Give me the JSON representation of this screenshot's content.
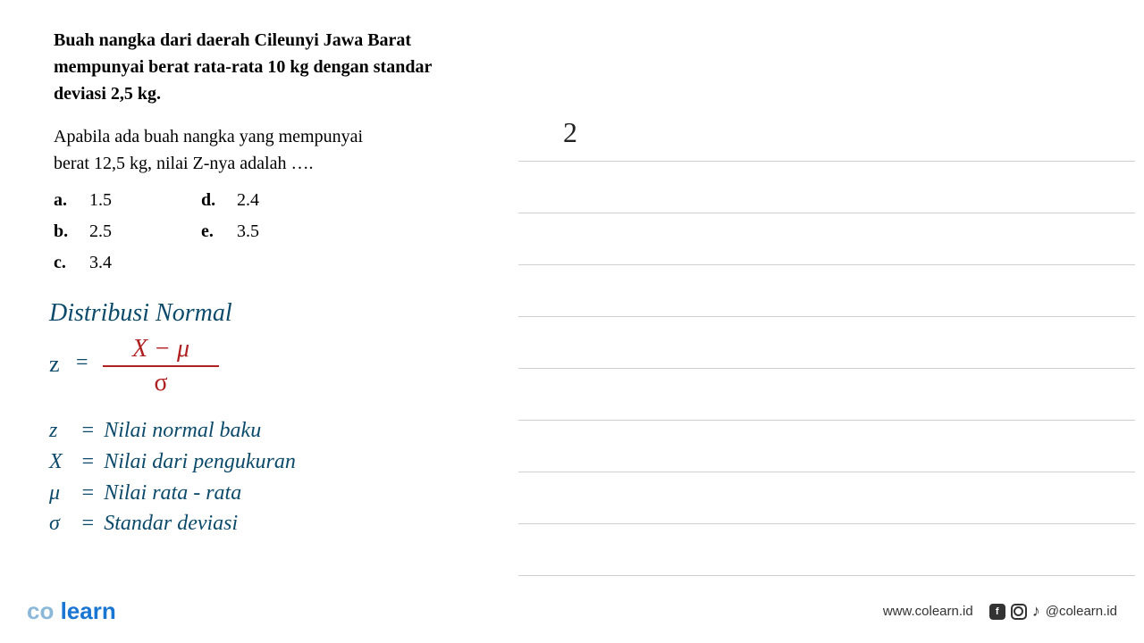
{
  "problem": {
    "context_l1": "Buah nangka dari daerah Cileunyi Jawa Barat",
    "context_l2": "mempunyai berat rata-rata 10 kg dengan standar",
    "context_l3": "deviasi 2,5 kg.",
    "question_l1": "Apabila ada buah nangka yang mempunyai",
    "question_l2": "berat 12,5 kg, nilai Z-nya adalah ….",
    "options": {
      "a": "1.5",
      "b": "2.5",
      "c": "3.4",
      "d": "2.4",
      "e": "3.5"
    }
  },
  "handwritten": {
    "title": "Distribusi Normal",
    "formula": {
      "lhs": "z",
      "eq": "=",
      "numerator": "X − μ",
      "denominator": "σ"
    },
    "definitions": {
      "z": {
        "sym": "z",
        "eq": "=",
        "text": "Nilai normal baku"
      },
      "x": {
        "sym": "X",
        "eq": "=",
        "text": "Nilai dari pengukuran"
      },
      "mu": {
        "sym": "μ",
        "eq": "=",
        "text": "Nilai rata - rata"
      },
      "sigma": {
        "sym": "σ",
        "eq": "=",
        "text": "Standar deviasi"
      }
    },
    "right_number": "2"
  },
  "footer": {
    "logo_co": "co",
    "logo_learn": "learn",
    "website": "www.colearn.id",
    "fb": "f",
    "tiktok": "♪",
    "handle": "@colearn.id"
  },
  "styling": {
    "hw_color": "#0b4a6b",
    "formula_color": "#b02020",
    "ruled_color": "#d0d0d0",
    "text_color": "#000000",
    "logo_co_color": "#8bb8d8",
    "logo_learn_color": "#1976d2",
    "ruled_line_count": 9,
    "ruled_spacing": 57
  }
}
